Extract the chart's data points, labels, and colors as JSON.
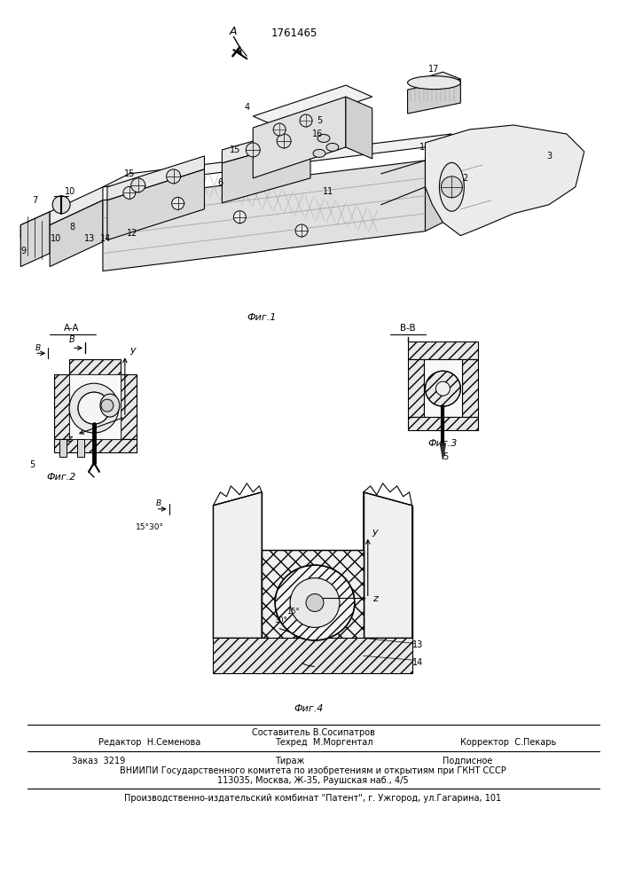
{
  "patent_number": "1761465",
  "background_color": "#ffffff",
  "line_color": "#000000",
  "fig_width": 7.07,
  "fig_height": 10.0,
  "dpi": 100,
  "footer_sestavitel": "Составитель В.Сосипатров",
  "footer_redaktor": "Редактор  Н.Семенова",
  "footer_tehred": "Техред  М.Моргентал",
  "footer_korrektor": "Корректор  С.Пекарь",
  "footer_order": "Заказ  3219",
  "footer_tirazh": "Тираж",
  "footer_podpisnoe": "Подписное",
  "footer_vniipи": "ВНИИПИ Государственного комитета по изобретениям и открытиям при ГКНТ СССР",
  "footer_address": "113035, Москва, Ж-35, Раушская наб., 4/5",
  "footer_patent": "Производственно-издательский комбинат \"Патент\", г. Ужгород, ул.Гагарина, 101",
  "fig1_label": "Фиг.1",
  "fig2_label": "Фиг.2",
  "fig3_label": "Фиг.3",
  "fig4_label": "Фиг.4"
}
